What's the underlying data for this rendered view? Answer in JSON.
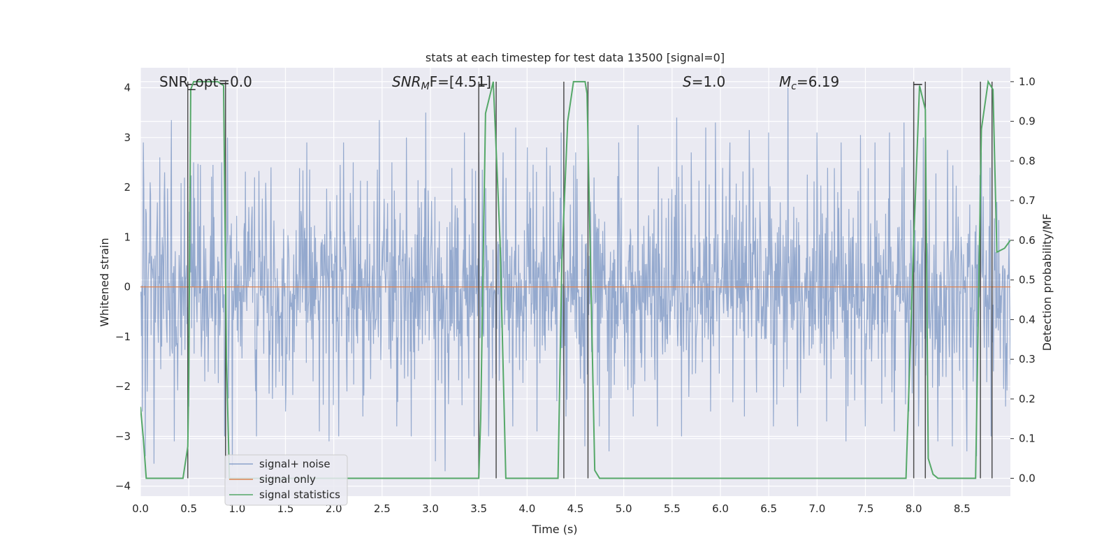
{
  "chart_data": {
    "type": "line",
    "title": "stats at each timestep for test data 13500 [signal=0]",
    "xlabel": "Time (s)",
    "ylabel": "Whitened strain",
    "ylabel_right": "Detection probability/MF",
    "xlim": [
      0.0,
      9.0
    ],
    "ylim": [
      -4.2,
      4.4
    ],
    "ylim_right": [
      -0.045,
      1.035
    ],
    "x_ticks": [
      "0.0",
      "0.5",
      "1.0",
      "1.5",
      "2.0",
      "2.5",
      "3.0",
      "3.5",
      "4.0",
      "4.5",
      "5.0",
      "5.5",
      "6.0",
      "6.5",
      "7.0",
      "7.5",
      "8.0",
      "8.5"
    ],
    "y_ticks": [
      "−4",
      "−3",
      "−2",
      "−1",
      "0",
      "1",
      "2",
      "3",
      "4"
    ],
    "y_ticks_right": [
      "0.0",
      "0.1",
      "0.2",
      "0.3",
      "0.4",
      "0.5",
      "0.6",
      "0.7",
      "0.8",
      "0.9",
      "1.0"
    ],
    "grid": true,
    "legend_position": "lower-left",
    "colors": {
      "background": "#eaeaf2",
      "grid": "#ffffff",
      "noise": "#4c72b0",
      "signal": "#dd8452",
      "statistics": "#55a868",
      "markers": "#4d4d4d"
    },
    "annotations": {
      "snr_opt": "SNR_opt=0.0",
      "snr_mf_prefix": "SNR",
      "snr_mf_sub": "M",
      "snr_mf_suffix": "F=[4.51]",
      "s_var": "S",
      "s_value": "=1.0",
      "mc_var": "M",
      "mc_sub": "c",
      "mc_value": "=6.19"
    },
    "series": [
      {
        "name": "signal+ noise",
        "kind": "noise",
        "n_samples": 1800,
        "envelope_low": -1.4,
        "envelope_high": 1.6,
        "spikes_up": [
          [
            0.03,
            2.9
          ],
          [
            0.1,
            2.1
          ],
          [
            0.2,
            2.6
          ],
          [
            0.25,
            2.3
          ],
          [
            0.32,
            3.35
          ],
          [
            0.5,
            2.4
          ],
          [
            0.55,
            2.5
          ],
          [
            0.62,
            2.45
          ],
          [
            0.75,
            2.45
          ],
          [
            0.84,
            2.5
          ],
          [
            0.9,
            3.0
          ],
          [
            1.18,
            2.2
          ],
          [
            1.35,
            2.4
          ],
          [
            1.5,
            2.9
          ],
          [
            1.72,
            2.9
          ],
          [
            1.85,
            3.1
          ],
          [
            1.95,
            3.05
          ],
          [
            2.1,
            2.9
          ],
          [
            2.2,
            2.5
          ],
          [
            2.47,
            3.35
          ],
          [
            2.6,
            2.5
          ],
          [
            2.75,
            3.0
          ],
          [
            2.95,
            3.5
          ],
          [
            3.05,
            2.8
          ],
          [
            3.15,
            2.5
          ],
          [
            3.35,
            3.1
          ],
          [
            3.5,
            2.7
          ],
          [
            3.75,
            2.7
          ],
          [
            3.88,
            3.2
          ],
          [
            4.0,
            2.8
          ],
          [
            4.1,
            2.9
          ],
          [
            4.2,
            2.8
          ],
          [
            4.35,
            3.1
          ],
          [
            4.5,
            2.7
          ],
          [
            4.6,
            2.4
          ],
          [
            4.95,
            2.9
          ],
          [
            5.15,
            3.25
          ],
          [
            5.35,
            3.1
          ],
          [
            5.55,
            3.4
          ],
          [
            5.7,
            2.7
          ],
          [
            5.85,
            3.2
          ],
          [
            5.95,
            3.3
          ],
          [
            6.1,
            2.9
          ],
          [
            6.3,
            3.15
          ],
          [
            6.5,
            3.1
          ],
          [
            6.7,
            4.0
          ],
          [
            6.8,
            3.0
          ],
          [
            7.0,
            3.1
          ],
          [
            7.25,
            2.9
          ],
          [
            7.45,
            3.05
          ],
          [
            7.6,
            2.9
          ],
          [
            7.75,
            3.1
          ],
          [
            7.9,
            3.3
          ],
          [
            8.0,
            3.45
          ],
          [
            8.1,
            3.0
          ],
          [
            8.25,
            2.7
          ],
          [
            8.35,
            2.75
          ],
          [
            8.55,
            2.6
          ],
          [
            8.7,
            2.7
          ],
          [
            8.8,
            2.6
          ],
          [
            8.95,
            2.2
          ]
        ],
        "spikes_down": [
          [
            0.02,
            -2.5
          ],
          [
            0.05,
            -3.4
          ],
          [
            0.14,
            -3.55
          ],
          [
            0.35,
            -3.1
          ],
          [
            0.5,
            -2.4
          ],
          [
            0.87,
            -3.0
          ],
          [
            0.95,
            -3.6
          ],
          [
            1.2,
            -3.0
          ],
          [
            1.5,
            -2.5
          ],
          [
            1.85,
            -2.9
          ],
          [
            1.95,
            -3.1
          ],
          [
            2.05,
            -3.0
          ],
          [
            2.3,
            -2.6
          ],
          [
            2.65,
            -2.8
          ],
          [
            2.8,
            -3.0
          ],
          [
            3.05,
            -3.5
          ],
          [
            3.15,
            -3.7
          ],
          [
            3.45,
            -3.0
          ],
          [
            3.6,
            -3.0
          ],
          [
            3.85,
            -2.8
          ],
          [
            4.1,
            -2.9
          ],
          [
            4.4,
            -2.6
          ],
          [
            4.6,
            -3.2
          ],
          [
            4.75,
            -2.8
          ],
          [
            4.85,
            -3.3
          ],
          [
            5.1,
            -2.6
          ],
          [
            5.35,
            -2.8
          ],
          [
            5.6,
            -3.0
          ],
          [
            5.9,
            -2.5
          ],
          [
            6.25,
            -2.6
          ],
          [
            6.55,
            -2.8
          ],
          [
            6.8,
            -2.8
          ],
          [
            7.1,
            -2.7
          ],
          [
            7.3,
            -3.1
          ],
          [
            7.5,
            -2.8
          ],
          [
            7.8,
            -2.9
          ],
          [
            7.95,
            -2.5
          ],
          [
            8.05,
            -2.8
          ],
          [
            8.25,
            -3.1
          ],
          [
            8.4,
            -3.2
          ],
          [
            8.55,
            -3.3
          ],
          [
            8.65,
            -3.4
          ],
          [
            8.8,
            -3.0
          ],
          [
            8.95,
            -2.4
          ]
        ]
      },
      {
        "name": "signal only",
        "kind": "flat",
        "x": [
          0.0,
          9.0
        ],
        "y": [
          0.0,
          0.0
        ]
      },
      {
        "name": "signal statistics",
        "kind": "probability",
        "x": [
          0.0,
          0.03,
          0.06,
          0.1,
          0.2,
          0.3,
          0.44,
          0.49,
          0.5,
          0.52,
          0.55,
          0.6,
          0.7,
          0.8,
          0.86,
          0.89,
          0.92,
          1.0,
          3.4,
          3.5,
          3.52,
          3.57,
          3.65,
          3.72,
          3.78,
          3.82,
          3.9,
          4.32,
          4.36,
          4.42,
          4.48,
          4.54,
          4.6,
          4.62,
          4.7,
          4.75,
          4.8,
          7.85,
          7.92,
          8.0,
          8.06,
          8.12,
          8.15,
          8.2,
          8.25,
          8.64,
          8.7,
          8.77,
          8.82,
          8.86,
          8.94,
          9.0
        ],
        "y": [
          0.18,
          0.1,
          0.0,
          0.0,
          0.0,
          0.0,
          0.0,
          0.08,
          0.25,
          0.98,
          1.0,
          1.0,
          1.0,
          1.0,
          0.99,
          0.3,
          0.0,
          0.0,
          0.0,
          0.0,
          0.15,
          0.92,
          1.0,
          0.6,
          0.0,
          0.0,
          0.0,
          0.0,
          0.55,
          0.9,
          1.0,
          1.0,
          1.0,
          0.97,
          0.02,
          0.0,
          0.0,
          0.0,
          0.0,
          0.6,
          0.99,
          0.93,
          0.05,
          0.01,
          0.0,
          0.0,
          0.88,
          1.0,
          0.98,
          0.57,
          0.58,
          0.6
        ]
      }
    ],
    "vertical_markers": [
      0.49,
      0.88,
      3.5,
      3.68,
      4.38,
      4.63,
      8.0,
      8.12,
      8.69,
      8.81
    ],
    "marker_caps": [
      0.49,
      3.5,
      8.0
    ],
    "marker_cap_value": 1.0
  }
}
